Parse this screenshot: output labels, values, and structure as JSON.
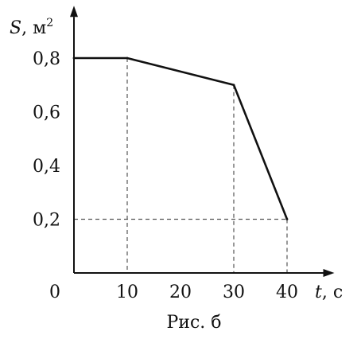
{
  "chart_data": {
    "type": "line",
    "title": "",
    "caption": "Рис. б",
    "xlabel": {
      "symbol": "t",
      "unit": ", с"
    },
    "ylabel": {
      "symbol": "S",
      "unit": ", м",
      "unit_exponent": "2"
    },
    "xlim": [
      0,
      45
    ],
    "ylim": [
      0,
      0.9
    ],
    "origin_label": "0",
    "x_ticks": [
      {
        "value": 10,
        "label": "10"
      },
      {
        "value": 20,
        "label": "20"
      },
      {
        "value": 30,
        "label": "30"
      },
      {
        "value": 40,
        "label": "40"
      }
    ],
    "y_ticks": [
      {
        "value": 0.2,
        "label": "0,2"
      },
      {
        "value": 0.4,
        "label": "0,4"
      },
      {
        "value": 0.6,
        "label": "0,6"
      },
      {
        "value": 0.8,
        "label": "0,8"
      }
    ],
    "series": [
      {
        "x": [
          0,
          10,
          30,
          40
        ],
        "y": [
          0.8,
          0.8,
          0.7,
          0.2
        ]
      }
    ],
    "grid": false,
    "dashed_guides": [
      {
        "kind": "vertical",
        "x": 10,
        "y": 0.8
      },
      {
        "kind": "vertical",
        "x": 30,
        "y": 0.7
      },
      {
        "kind": "vertical",
        "x": 40,
        "y": 0.2
      },
      {
        "kind": "horizontal",
        "x": 40,
        "y": 0.2
      }
    ],
    "colors": {
      "line": "#111111",
      "axis": "#111111",
      "guide": "#555555"
    }
  }
}
